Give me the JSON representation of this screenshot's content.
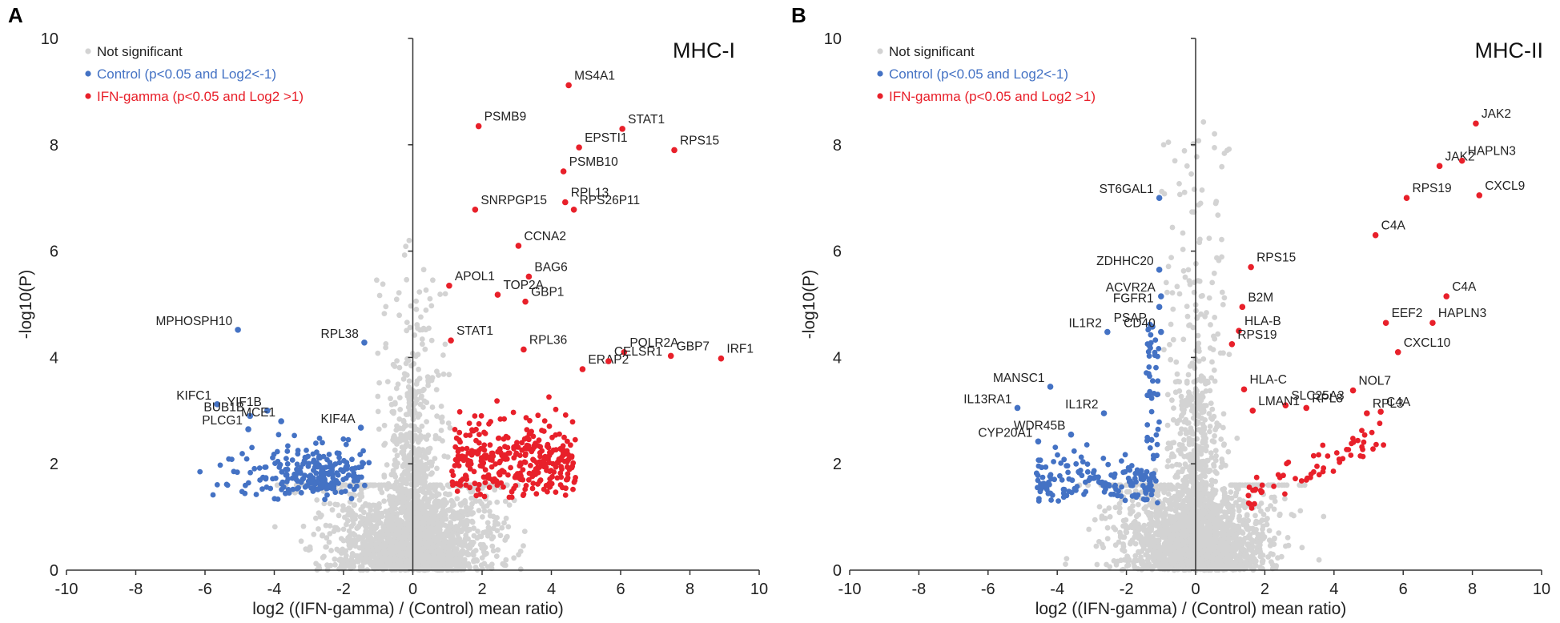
{
  "chart_data": [
    {
      "type": "scatter",
      "panel": "A",
      "title": "MHC-I",
      "xlabel": "log2 ((IFN-gamma) / (Control) mean ratio)",
      "ylabel": "-log10(P)",
      "xlim": [
        -10,
        10
      ],
      "ylim": [
        0,
        10
      ],
      "xticks": [
        -10,
        -8,
        -6,
        -4,
        -2,
        0,
        2,
        4,
        6,
        8,
        10
      ],
      "yticks": [
        0,
        2,
        4,
        6,
        8,
        10
      ],
      "legend": {
        "position": "top-left",
        "entries": [
          {
            "label": "Not significant",
            "color": "#d3d3d3"
          },
          {
            "label": "Control (p<0.05 and Log2<-1)",
            "color": "#4472c4"
          },
          {
            "label": "IFN-gamma (p<0.05 and Log2 >1)",
            "color": "#e8202a"
          }
        ]
      },
      "labeled_points": [
        {
          "gene": "MS4A1",
          "x": 4.5,
          "y": 9.12,
          "group": "up"
        },
        {
          "gene": "PSMB9",
          "x": 1.9,
          "y": 8.35,
          "group": "up"
        },
        {
          "gene": "STAT1",
          "x": 6.05,
          "y": 8.3,
          "group": "up"
        },
        {
          "gene": "EPSTI1",
          "x": 4.8,
          "y": 7.95,
          "group": "up"
        },
        {
          "gene": "RPS15",
          "x": 7.55,
          "y": 7.9,
          "group": "up"
        },
        {
          "gene": "PSMB10",
          "x": 4.35,
          "y": 7.5,
          "group": "up"
        },
        {
          "gene": "RPL13",
          "x": 4.4,
          "y": 6.92,
          "group": "up"
        },
        {
          "gene": "RPS26P11",
          "x": 4.65,
          "y": 6.78,
          "group": "up"
        },
        {
          "gene": "SNRPGP15",
          "x": 1.8,
          "y": 6.78,
          "group": "up"
        },
        {
          "gene": "CCNA2",
          "x": 3.05,
          "y": 6.1,
          "group": "up"
        },
        {
          "gene": "APOL1",
          "x": 1.05,
          "y": 5.35,
          "group": "up"
        },
        {
          "gene": "BAG6",
          "x": 3.35,
          "y": 5.52,
          "group": "up"
        },
        {
          "gene": "TOP2A",
          "x": 2.45,
          "y": 5.18,
          "group": "up"
        },
        {
          "gene": "GBP1",
          "x": 3.25,
          "y": 5.05,
          "group": "up"
        },
        {
          "gene": "STAT1",
          "x": 1.1,
          "y": 4.32,
          "group": "up"
        },
        {
          "gene": "RPL36",
          "x": 3.2,
          "y": 4.15,
          "group": "up"
        },
        {
          "gene": "POLR2A",
          "x": 6.1,
          "y": 4.1,
          "group": "up"
        },
        {
          "gene": "GBP7",
          "x": 7.45,
          "y": 4.03,
          "group": "up"
        },
        {
          "gene": "IRF1",
          "x": 8.9,
          "y": 3.98,
          "group": "up"
        },
        {
          "gene": "ERAP2",
          "x": 4.9,
          "y": 3.78,
          "group": "up"
        },
        {
          "gene": "CELSR1",
          "x": 5.65,
          "y": 3.93,
          "group": "up"
        },
        {
          "gene": "MPHOSPH10",
          "x": -5.05,
          "y": 4.52,
          "group": "down"
        },
        {
          "gene": "RPL38",
          "x": -1.4,
          "y": 4.28,
          "group": "down"
        },
        {
          "gene": "KIFC1",
          "x": -5.65,
          "y": 3.12,
          "group": "down"
        },
        {
          "gene": "YIF1B",
          "x": -4.2,
          "y": 3.0,
          "group": "down"
        },
        {
          "gene": "BUB1B",
          "x": -4.7,
          "y": 2.9,
          "group": "down"
        },
        {
          "gene": "MCE1",
          "x": -3.8,
          "y": 2.8,
          "group": "down"
        },
        {
          "gene": "PLCG1",
          "x": -4.75,
          "y": 2.65,
          "group": "down"
        },
        {
          "gene": "KIF4A",
          "x": -1.5,
          "y": 2.68,
          "group": "down"
        }
      ]
    },
    {
      "type": "scatter",
      "panel": "B",
      "title": "MHC-II",
      "xlabel": "log2 ((IFN-gamma) / (Control) mean ratio)",
      "ylabel": "-log10(P)",
      "xlim": [
        -10,
        10
      ],
      "ylim": [
        0,
        10
      ],
      "xticks": [
        -10,
        -8,
        -6,
        -4,
        -2,
        0,
        2,
        4,
        6,
        8,
        10
      ],
      "yticks": [
        0,
        2,
        4,
        6,
        8,
        10
      ],
      "legend": {
        "position": "top-left",
        "entries": [
          {
            "label": "Not significant",
            "color": "#d3d3d3"
          },
          {
            "label": "Control (p<0.05 and Log2<-1)",
            "color": "#4472c4"
          },
          {
            "label": "IFN-gamma (p<0.05 and Log2 >1)",
            "color": "#e8202a"
          }
        ]
      },
      "labeled_points": [
        {
          "gene": "JAK2",
          "x": 8.1,
          "y": 8.4,
          "group": "up"
        },
        {
          "gene": "JAK2",
          "x": 7.05,
          "y": 7.6,
          "group": "up"
        },
        {
          "gene": "HAPLN3",
          "x": 7.7,
          "y": 7.7,
          "group": "up"
        },
        {
          "gene": "RPS19",
          "x": 6.1,
          "y": 7.0,
          "group": "up"
        },
        {
          "gene": "CXCL9",
          "x": 8.2,
          "y": 7.05,
          "group": "up"
        },
        {
          "gene": "C4A",
          "x": 5.2,
          "y": 6.3,
          "group": "up"
        },
        {
          "gene": "C4A",
          "x": 7.25,
          "y": 5.15,
          "group": "up"
        },
        {
          "gene": "RPS15",
          "x": 1.6,
          "y": 5.7,
          "group": "up"
        },
        {
          "gene": "B2M",
          "x": 1.35,
          "y": 4.95,
          "group": "up"
        },
        {
          "gene": "EEF2",
          "x": 5.5,
          "y": 4.65,
          "group": "up"
        },
        {
          "gene": "HAPLN3",
          "x": 6.85,
          "y": 4.65,
          "group": "up"
        },
        {
          "gene": "HLA-B",
          "x": 1.25,
          "y": 4.5,
          "group": "up"
        },
        {
          "gene": "RPS19",
          "x": 1.05,
          "y": 4.25,
          "group": "up"
        },
        {
          "gene": "CXCL10",
          "x": 5.85,
          "y": 4.1,
          "group": "up"
        },
        {
          "gene": "HLA-C",
          "x": 1.4,
          "y": 3.4,
          "group": "up"
        },
        {
          "gene": "NOL7",
          "x": 4.55,
          "y": 3.38,
          "group": "up"
        },
        {
          "gene": "SLC25A3",
          "x": 2.6,
          "y": 3.1,
          "group": "up"
        },
        {
          "gene": "LMAN1",
          "x": 1.65,
          "y": 3.0,
          "group": "up"
        },
        {
          "gene": "RPL8",
          "x": 3.2,
          "y": 3.05,
          "group": "up"
        },
        {
          "gene": "RPL3",
          "x": 4.95,
          "y": 2.95,
          "group": "up"
        },
        {
          "gene": "C4A",
          "x": 5.35,
          "y": 2.98,
          "group": "up"
        },
        {
          "gene": "ST6GAL1",
          "x": -1.05,
          "y": 7.0,
          "group": "down"
        },
        {
          "gene": "ZDHHC20",
          "x": -1.05,
          "y": 5.65,
          "group": "down"
        },
        {
          "gene": "ACVR2A",
          "x": -1.0,
          "y": 5.15,
          "group": "down"
        },
        {
          "gene": "FGFR1",
          "x": -1.05,
          "y": 4.95,
          "group": "down"
        },
        {
          "gene": "PSAP",
          "x": -1.25,
          "y": 4.58,
          "group": "down"
        },
        {
          "gene": "CD40",
          "x": -1.0,
          "y": 4.48,
          "group": "down"
        },
        {
          "gene": "IL1R2",
          "x": -2.55,
          "y": 4.48,
          "group": "down"
        },
        {
          "gene": "MANSC1",
          "x": -4.2,
          "y": 3.45,
          "group": "down"
        },
        {
          "gene": "IL13RA1",
          "x": -5.15,
          "y": 3.05,
          "group": "down"
        },
        {
          "gene": "IL1R2",
          "x": -2.65,
          "y": 2.95,
          "group": "down"
        },
        {
          "gene": "WDR45B",
          "x": -3.6,
          "y": 2.55,
          "group": "down"
        },
        {
          "gene": "CYP20A1",
          "x": -4.55,
          "y": 2.42,
          "group": "down"
        }
      ]
    }
  ],
  "panels": [
    {
      "letter": "A",
      "title": "MHC-I"
    },
    {
      "letter": "B",
      "title": "MHC-II"
    }
  ]
}
